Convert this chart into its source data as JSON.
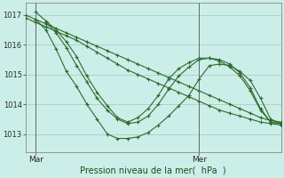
{
  "background_color": "#cceee8",
  "grid_color": "#aad4cc",
  "line_color": "#2d6a2d",
  "title": "Pression niveau de la mer(  hPa  )",
  "xlabel_left": "Mar",
  "xlabel_right": "Mer",
  "ylim": [
    1012.4,
    1017.4
  ],
  "xlim": [
    0,
    50
  ],
  "yticks": [
    1013,
    1014,
    1015,
    1016,
    1017
  ],
  "xtick_mar": 2,
  "xtick_mer": 34,
  "series": [
    {
      "x": [
        0,
        2,
        4,
        6,
        8,
        10,
        12,
        14,
        16,
        18,
        20,
        22,
        24,
        26,
        28,
        30,
        32,
        34,
        36,
        38,
        40,
        42,
        44,
        46,
        48,
        50
      ],
      "y": [
        1017.0,
        1016.85,
        1016.7,
        1016.55,
        1016.4,
        1016.25,
        1016.1,
        1015.95,
        1015.8,
        1015.65,
        1015.5,
        1015.35,
        1015.2,
        1015.05,
        1014.9,
        1014.75,
        1014.6,
        1014.45,
        1014.3,
        1014.15,
        1014.0,
        1013.85,
        1013.7,
        1013.55,
        1013.45,
        1013.4
      ]
    },
    {
      "x": [
        0,
        2,
        4,
        6,
        8,
        10,
        12,
        14,
        16,
        18,
        20,
        22,
        24,
        26,
        28,
        30,
        32,
        34,
        36,
        38,
        40,
        42,
        44,
        46,
        48,
        50
      ],
      "y": [
        1016.9,
        1016.75,
        1016.6,
        1016.45,
        1016.3,
        1016.15,
        1015.95,
        1015.75,
        1015.55,
        1015.35,
        1015.15,
        1015.0,
        1014.85,
        1014.7,
        1014.55,
        1014.4,
        1014.25,
        1014.1,
        1013.95,
        1013.8,
        1013.7,
        1013.6,
        1013.5,
        1013.4,
        1013.35,
        1013.3
      ]
    },
    {
      "x": [
        2,
        4,
        6,
        8,
        10,
        12,
        14,
        16,
        18,
        20,
        22,
        24,
        26,
        28,
        30,
        32,
        34,
        36,
        38,
        40,
        42,
        44,
        46,
        48,
        50
      ],
      "y": [
        1016.85,
        1016.5,
        1015.85,
        1015.1,
        1014.6,
        1014.0,
        1013.5,
        1013.0,
        1012.85,
        1012.85,
        1012.9,
        1013.05,
        1013.3,
        1013.6,
        1013.95,
        1014.3,
        1014.85,
        1015.3,
        1015.35,
        1015.3,
        1015.1,
        1014.8,
        1014.2,
        1013.5,
        1013.35
      ]
    },
    {
      "x": [
        2,
        4,
        6,
        8,
        10,
        12,
        14,
        16,
        18,
        20,
        22,
        24,
        26,
        28,
        30,
        32,
        34,
        36,
        38,
        40,
        42,
        44,
        46,
        48,
        50
      ],
      "y": [
        1017.1,
        1016.8,
        1016.5,
        1016.1,
        1015.6,
        1014.95,
        1014.4,
        1013.95,
        1013.55,
        1013.4,
        1013.55,
        1013.85,
        1014.3,
        1014.85,
        1015.2,
        1015.4,
        1015.55,
        1015.55,
        1015.45,
        1015.25,
        1014.95,
        1014.45,
        1013.8,
        1013.4,
        1013.35
      ]
    },
    {
      "x": [
        4,
        6,
        8,
        10,
        12,
        14,
        16,
        18,
        20,
        22,
        24,
        26,
        28,
        30,
        32,
        34,
        36,
        38,
        40,
        42,
        44,
        46,
        48,
        50
      ],
      "y": [
        1016.75,
        1016.4,
        1015.9,
        1015.3,
        1014.75,
        1014.2,
        1013.8,
        1013.5,
        1013.35,
        1013.4,
        1013.6,
        1014.0,
        1014.5,
        1014.95,
        1015.25,
        1015.5,
        1015.55,
        1015.5,
        1015.35,
        1015.05,
        1014.55,
        1013.85,
        1013.4,
        1013.35
      ]
    }
  ]
}
